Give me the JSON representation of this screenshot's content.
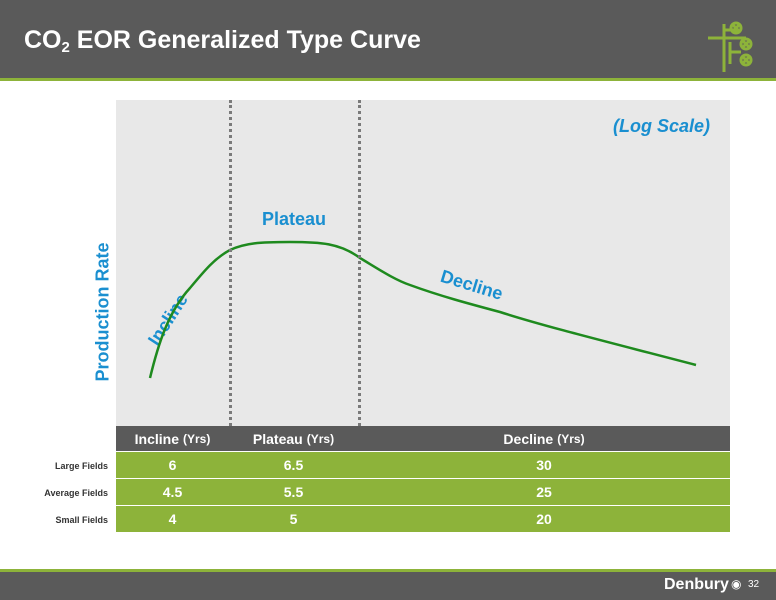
{
  "header": {
    "title_prefix": "CO",
    "title_sub": "2",
    "title_rest": " EOR Generalized Type Curve"
  },
  "colors": {
    "header_bg": "#5a5a5a",
    "accent_green": "#8db33a",
    "label_blue": "#1a8fd0",
    "curve_green": "#1e8a1e",
    "plot_bg": "#e8e8e8"
  },
  "chart_data": {
    "type": "line",
    "ylabel": "Production Rate",
    "scale_note": "(Log Scale)",
    "y_scale": "log",
    "phases": [
      "Incline",
      "Plateau",
      "Decline"
    ],
    "curve_shape": [
      "rising",
      "flat",
      "declining"
    ],
    "grid": false
  },
  "table": {
    "headers": [
      {
        "name": "Incline",
        "unit": "(Yrs)"
      },
      {
        "name": "Plateau",
        "unit": "(Yrs)"
      },
      {
        "name": "Decline",
        "unit": "(Yrs)"
      }
    ],
    "rows": [
      {
        "label": "Large Fields",
        "values": [
          "6",
          "6.5",
          "30"
        ]
      },
      {
        "label": "Average Fields",
        "values": [
          "4.5",
          "5.5",
          "25"
        ]
      },
      {
        "label": "Small Fields",
        "values": [
          "4",
          "5",
          "20"
        ]
      }
    ]
  },
  "footer": {
    "brand": "Denbury",
    "drop_icon": "drop-icon",
    "page_number": "32"
  }
}
